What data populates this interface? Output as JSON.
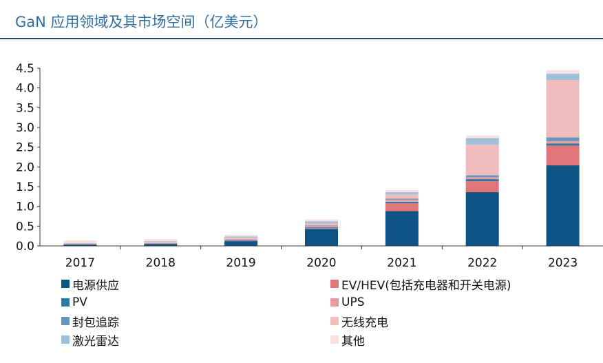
{
  "title": "GaN 应用领域及其市场空间（亿美元）",
  "colors": {
    "title": "#2e6fa1",
    "rule": "#1a4f7e"
  },
  "chart_data": {
    "type": "bar",
    "stacked": true,
    "categories": [
      "2017",
      "2018",
      "2019",
      "2020",
      "2021",
      "2022",
      "2023"
    ],
    "ylim": [
      0,
      4.5
    ],
    "yticks": [
      "0.0",
      "0.5",
      "1.0",
      "1.5",
      "2.0",
      "2.5",
      "3.0",
      "3.5",
      "4.0",
      "4.5"
    ],
    "grid": false,
    "legend_position": "bottom",
    "series": [
      {
        "name": "电源供应",
        "color": "#0e5585",
        "values": [
          0.04,
          0.05,
          0.12,
          0.43,
          0.88,
          1.36,
          2.04
        ]
      },
      {
        "name": "EV/HEV(包括充电器和开关电源)",
        "color": "#e07677",
        "values": [
          0.0,
          0.0,
          0.01,
          0.02,
          0.2,
          0.28,
          0.5
        ]
      },
      {
        "name": "PV",
        "color": "#2e78a8",
        "values": [
          0.0,
          0.0,
          0.01,
          0.02,
          0.04,
          0.05,
          0.05
        ]
      },
      {
        "name": "UPS",
        "color": "#ea9a9a",
        "values": [
          0.0,
          0.01,
          0.02,
          0.03,
          0.05,
          0.05,
          0.06
        ]
      },
      {
        "name": "封包追踪",
        "color": "#6897ba",
        "values": [
          0.0,
          0.01,
          0.01,
          0.02,
          0.03,
          0.05,
          0.1
        ]
      },
      {
        "name": "无线充电",
        "color": "#f2bcbc",
        "values": [
          0.02,
          0.03,
          0.04,
          0.05,
          0.1,
          0.77,
          1.45
        ]
      },
      {
        "name": "激光雷达",
        "color": "#9fc0d9",
        "values": [
          0.01,
          0.02,
          0.03,
          0.05,
          0.06,
          0.17,
          0.16
        ]
      },
      {
        "name": "其他",
        "color": "#fbe0e1",
        "values": [
          0.07,
          0.05,
          0.04,
          0.05,
          0.05,
          0.07,
          0.09
        ]
      }
    ]
  }
}
